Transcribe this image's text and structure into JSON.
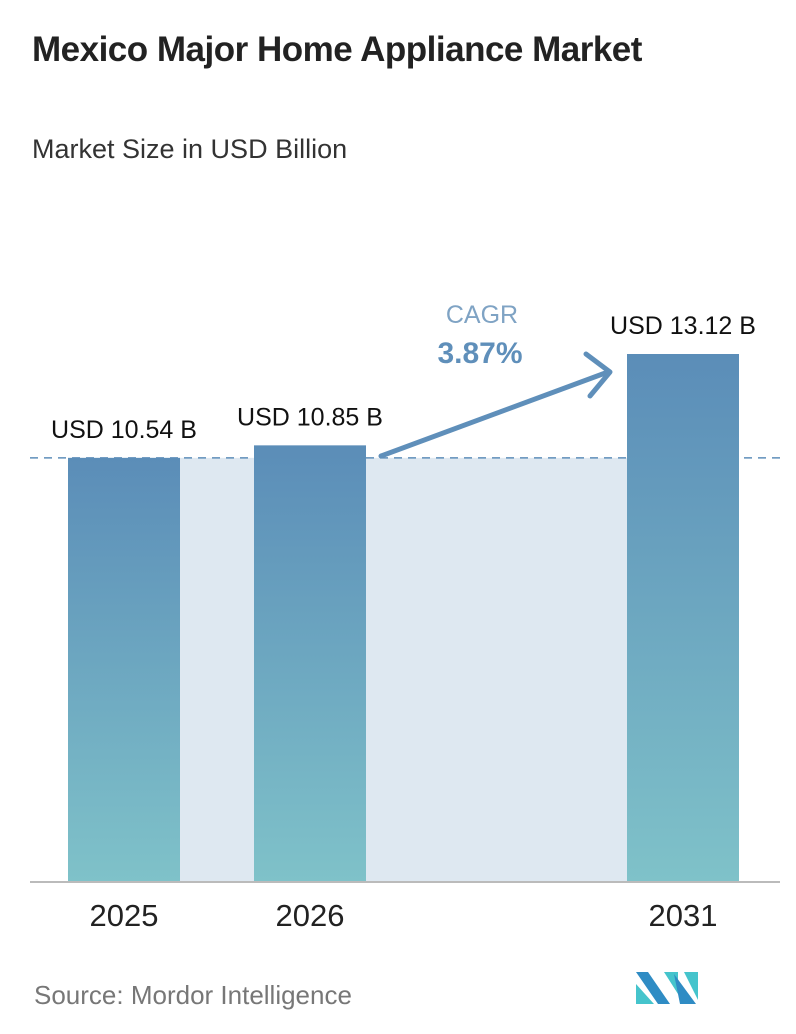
{
  "title": "Mexico Major Home Appliance Market",
  "subtitle": "Market Size in USD Billion",
  "source": "Source:  Mordor Intelligence",
  "logo": "Mordor Intelligence MI logo",
  "colors": {
    "bar_top": "#5b8db8",
    "bar_bottom": "#7fc2c9",
    "shade": "#dee8f1",
    "accent": "#5f8fba"
  },
  "chart_data": {
    "type": "bar",
    "categories": [
      "2025",
      "2026",
      "2031"
    ],
    "values": [
      10.54,
      10.85,
      13.12
    ],
    "data_labels": [
      "USD 10.54 B",
      "USD 10.85 B",
      "USD 13.12 B"
    ],
    "annotation": {
      "label": "CAGR",
      "value": "3.87%"
    },
    "ylim": [
      0,
      13.12
    ],
    "grid": false,
    "reference_line": 10.54
  }
}
